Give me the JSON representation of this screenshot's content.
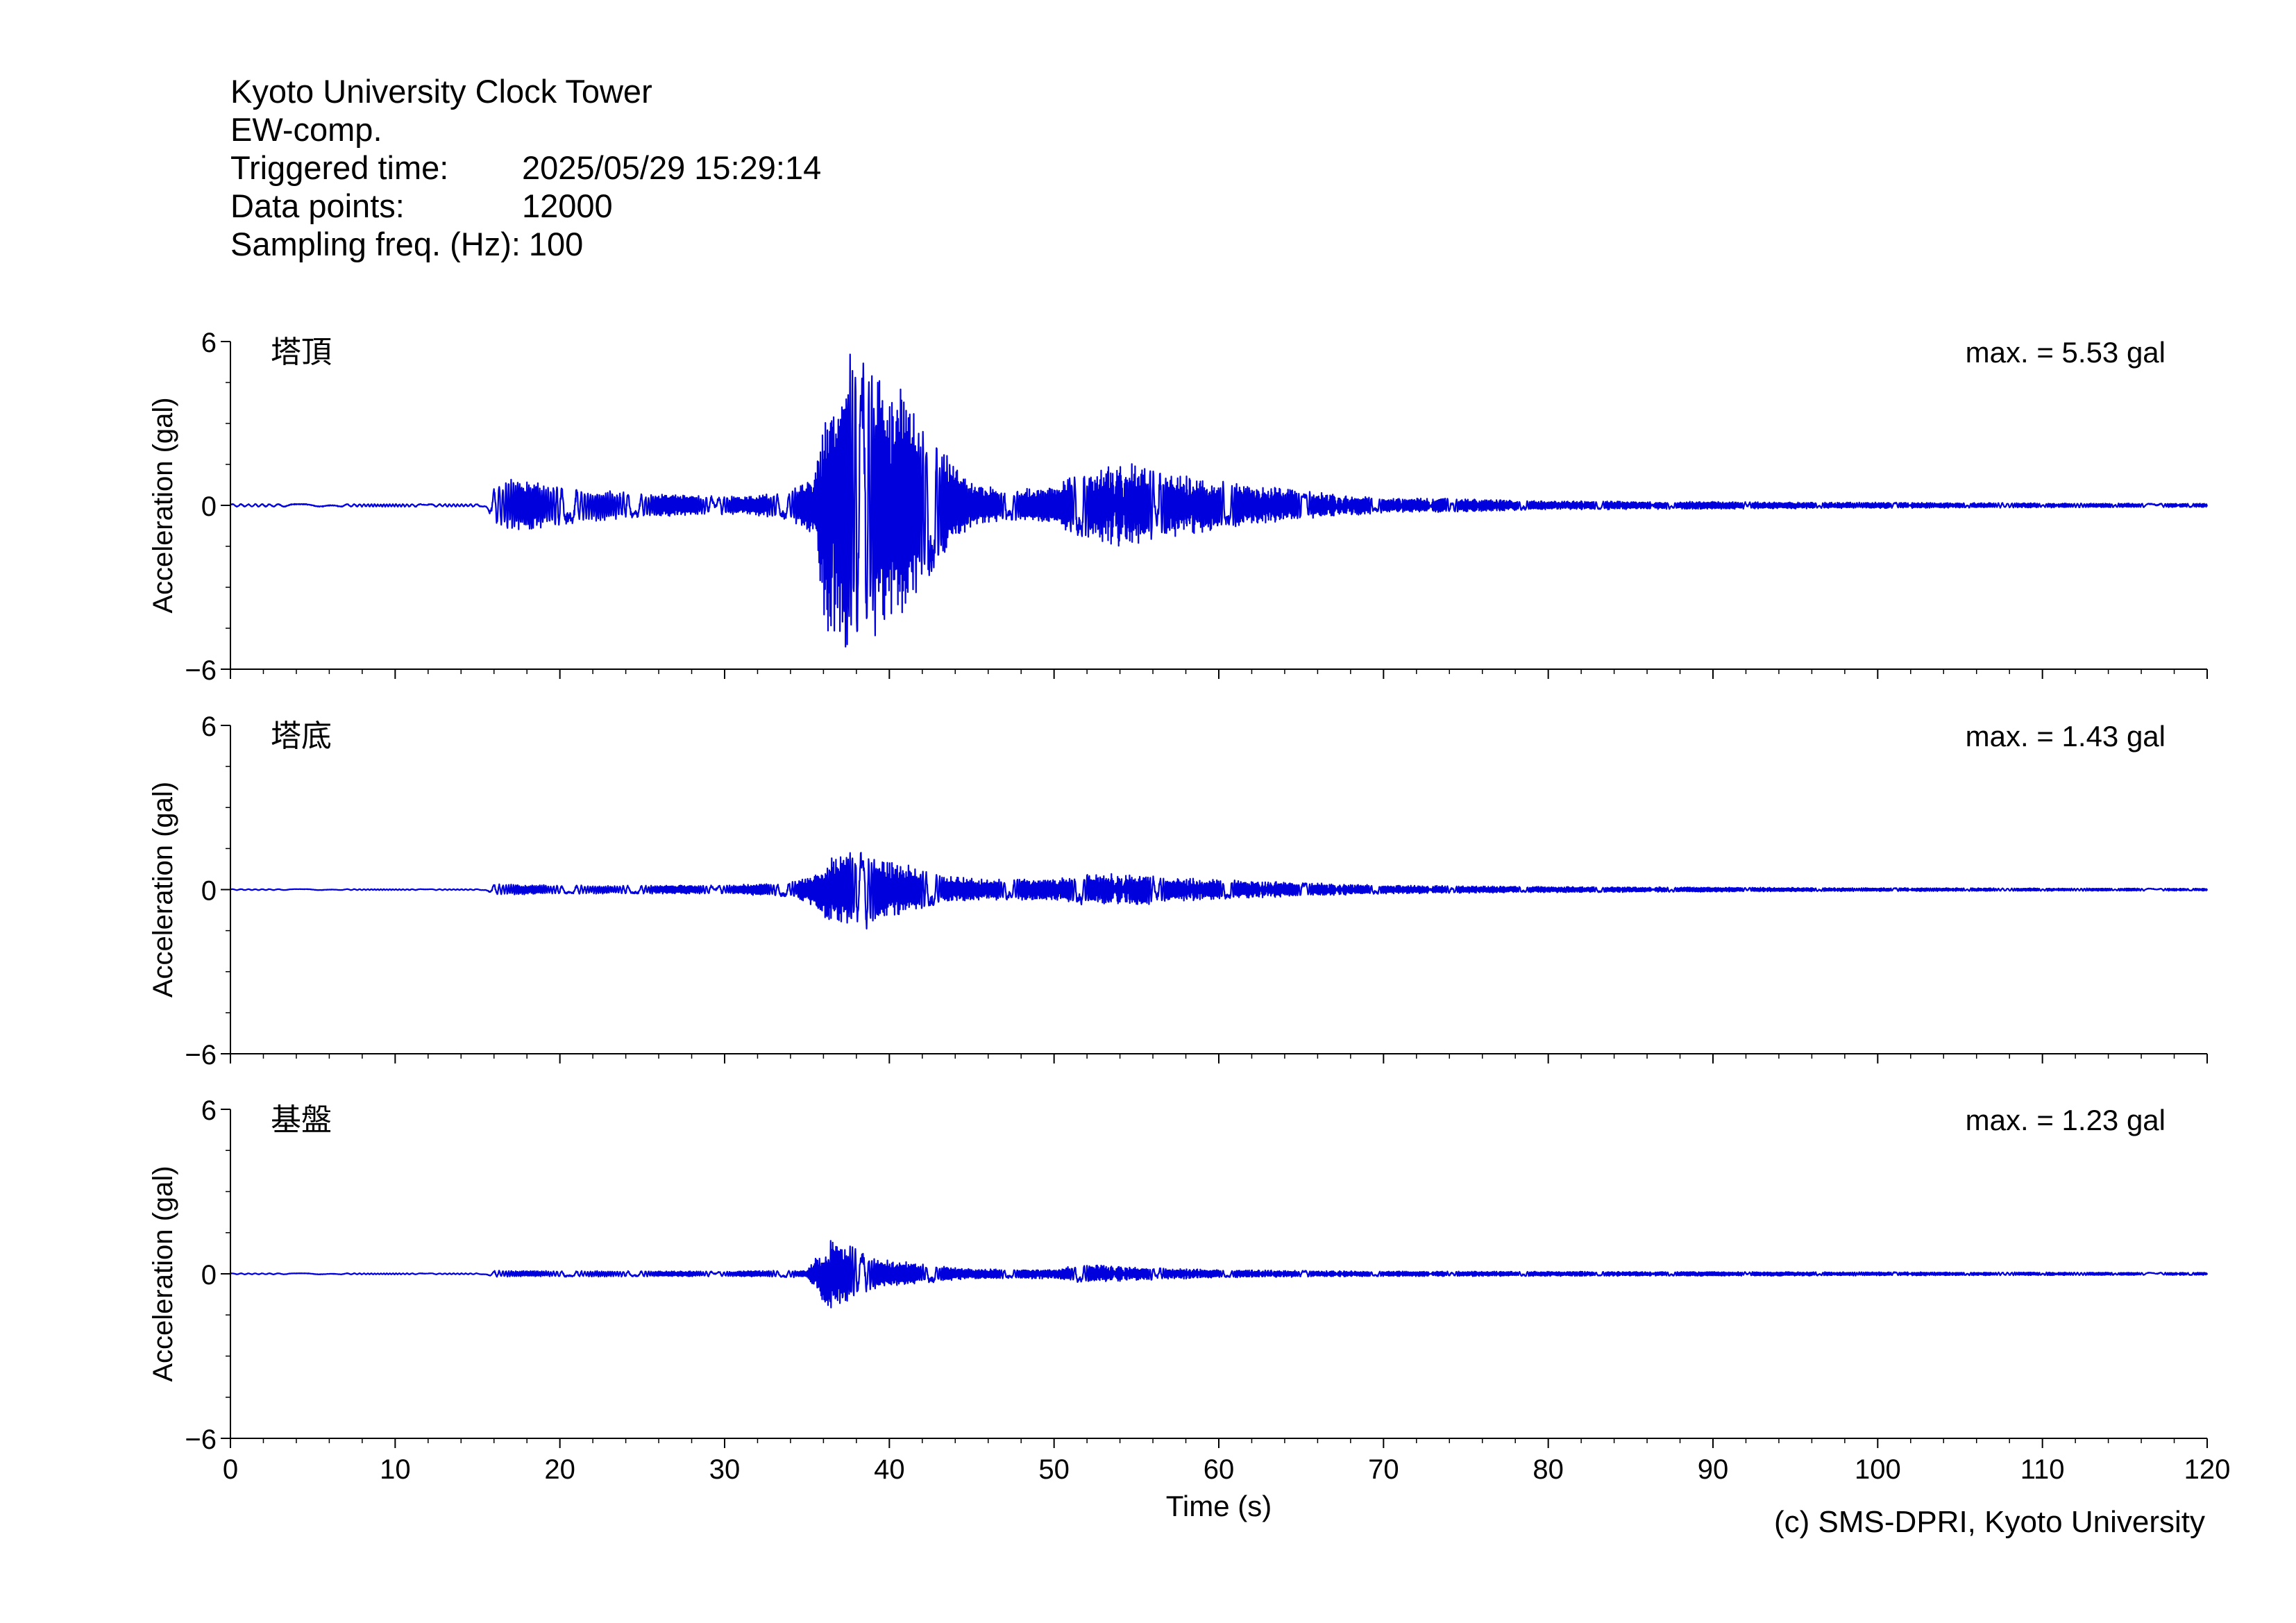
{
  "header": {
    "station": "Kyoto University Clock Tower",
    "component": "EW-comp.",
    "triggered_label": "Triggered time:",
    "triggered_value": "2025/05/29 15:29:14",
    "points_label": "Data points:",
    "points_value": "12000",
    "freq_label": "Sampling freq. (Hz):",
    "freq_value": "100"
  },
  "credit": "(c) SMS-DPRI, Kyoto University",
  "colors": {
    "trace": "#0000dd",
    "axis": "#000000"
  },
  "chart_data": [
    {
      "type": "line",
      "title": "塔頂",
      "annotation": "max. = 5.53 gal",
      "ylabel": "Acceleration (gal)",
      "ylim": [
        -6,
        6
      ],
      "yticks": [
        -6,
        0,
        6
      ],
      "xlim": [
        0,
        120
      ],
      "xticks": [
        0,
        10,
        20,
        30,
        40,
        50,
        60,
        70,
        80,
        90,
        100,
        110,
        120
      ],
      "peak": 5.53,
      "envelope": [
        [
          0,
          0.05
        ],
        [
          15.5,
          0.05
        ],
        [
          16,
          0.6
        ],
        [
          17,
          0.9
        ],
        [
          19,
          0.75
        ],
        [
          22,
          0.55
        ],
        [
          25,
          0.4
        ],
        [
          28,
          0.35
        ],
        [
          31,
          0.3
        ],
        [
          34,
          0.5
        ],
        [
          35.5,
          1.2
        ],
        [
          36.2,
          4.5
        ],
        [
          37.2,
          4.8
        ],
        [
          38.2,
          5.53
        ],
        [
          39.2,
          4.8
        ],
        [
          40.5,
          4.2
        ],
        [
          41.5,
          3.2
        ],
        [
          43,
          2.2
        ],
        [
          45,
          0.8
        ],
        [
          47,
          0.5
        ],
        [
          50,
          0.7
        ],
        [
          52,
          1.2
        ],
        [
          54.5,
          1.5
        ],
        [
          56,
          1.2
        ],
        [
          58,
          1.0
        ],
        [
          62,
          0.7
        ],
        [
          65,
          0.5
        ],
        [
          70,
          0.25
        ],
        [
          73,
          0.25
        ],
        [
          80,
          0.15
        ],
        [
          100,
          0.1
        ],
        [
          120,
          0.06
        ]
      ]
    },
    {
      "type": "line",
      "title": "塔底",
      "annotation": "max. = 1.43 gal",
      "ylabel": "Acceleration (gal)",
      "ylim": [
        -6,
        6
      ],
      "yticks": [
        -6,
        0,
        6
      ],
      "xlim": [
        0,
        120
      ],
      "xticks": [
        0,
        10,
        20,
        30,
        40,
        50,
        60,
        70,
        80,
        90,
        100,
        110,
        120
      ],
      "peak": 1.43,
      "envelope": [
        [
          0,
          0.02
        ],
        [
          15.5,
          0.02
        ],
        [
          16,
          0.2
        ],
        [
          20,
          0.15
        ],
        [
          30,
          0.15
        ],
        [
          34,
          0.25
        ],
        [
          35.5,
          0.6
        ],
        [
          36.5,
          1.2
        ],
        [
          38.5,
          1.43
        ],
        [
          40,
          1.0
        ],
        [
          41,
          0.9
        ],
        [
          43,
          0.5
        ],
        [
          46,
          0.35
        ],
        [
          50,
          0.4
        ],
        [
          52,
          0.55
        ],
        [
          55,
          0.55
        ],
        [
          58,
          0.4
        ],
        [
          62,
          0.3
        ],
        [
          70,
          0.15
        ],
        [
          80,
          0.1
        ],
        [
          100,
          0.06
        ],
        [
          120,
          0.04
        ]
      ]
    },
    {
      "type": "line",
      "title": "基盤",
      "annotation": "max. = 1.23 gal",
      "ylabel": "Acceleration (gal)",
      "xlabel": "Time (s)",
      "ylim": [
        -6,
        6
      ],
      "yticks": [
        -6,
        0,
        6
      ],
      "xlim": [
        0,
        120
      ],
      "xticks": [
        0,
        10,
        20,
        30,
        40,
        50,
        60,
        70,
        80,
        90,
        100,
        110,
        120
      ],
      "peak": 1.23,
      "envelope": [
        [
          0,
          0.02
        ],
        [
          15.5,
          0.02
        ],
        [
          16,
          0.1
        ],
        [
          30,
          0.08
        ],
        [
          35,
          0.12
        ],
        [
          36,
          0.9
        ],
        [
          36.5,
          1.23
        ],
        [
          37.5,
          0.9
        ],
        [
          39,
          0.5
        ],
        [
          42,
          0.3
        ],
        [
          45,
          0.15
        ],
        [
          50,
          0.15
        ],
        [
          52,
          0.3
        ],
        [
          55,
          0.2
        ],
        [
          60,
          0.12
        ],
        [
          70,
          0.08
        ],
        [
          120,
          0.04
        ]
      ]
    }
  ]
}
